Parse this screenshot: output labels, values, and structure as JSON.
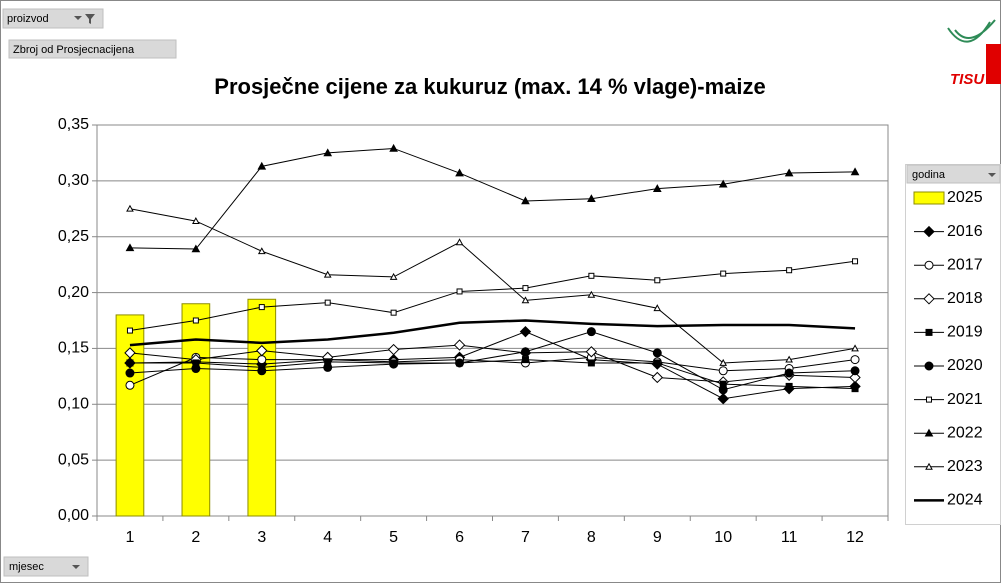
{
  "ui": {
    "filter_field": "proizvod",
    "data_field": "Zbroj od Prosjecnacijena",
    "legend_field": "godina",
    "axis_field": "mjesec",
    "logo": "TISU"
  },
  "chart_data": {
    "type": "line",
    "title": "Prosječne cijene za kukuruz (max. 14 % vlage)-maize",
    "categories": [
      "1",
      "2",
      "3",
      "4",
      "5",
      "6",
      "7",
      "8",
      "9",
      "10",
      "11",
      "12"
    ],
    "ylim": [
      0,
      0.35
    ],
    "yticks": [
      {
        "value": 0,
        "label": "0,00"
      },
      {
        "value": 0.05,
        "label": "0,05"
      },
      {
        "value": 0.1,
        "label": "0,10"
      },
      {
        "value": 0.15,
        "label": "0,15"
      },
      {
        "value": 0.2,
        "label": "0,20"
      },
      {
        "value": 0.25,
        "label": "0,25"
      },
      {
        "value": 0.3,
        "label": "0,30"
      },
      {
        "value": 0.35,
        "label": "0,35"
      }
    ],
    "grid": true,
    "legend": "right",
    "series": [
      {
        "name": "2025",
        "type": "bar",
        "color": "#ffff00",
        "marker": "none",
        "values": [
          0.18,
          0.19,
          0.194,
          null,
          null,
          null,
          null,
          null,
          null,
          null,
          null,
          null
        ]
      },
      {
        "name": "2016",
        "type": "line",
        "color": "#000000",
        "marker": "diamond-filled",
        "values": [
          0.137,
          0.138,
          0.136,
          0.14,
          0.14,
          0.142,
          0.165,
          0.14,
          0.136,
          0.105,
          0.114,
          0.116
        ]
      },
      {
        "name": "2017",
        "type": "line",
        "color": "#000000",
        "marker": "circle-open",
        "values": [
          0.117,
          0.142,
          0.14,
          0.14,
          0.138,
          0.14,
          0.137,
          0.142,
          0.138,
          0.13,
          0.132,
          0.14
        ]
      },
      {
        "name": "2018",
        "type": "line",
        "color": "#000000",
        "marker": "diamond-open",
        "values": [
          0.146,
          0.14,
          0.148,
          0.142,
          0.149,
          0.153,
          0.146,
          0.147,
          0.124,
          0.12,
          0.126,
          0.124
        ]
      },
      {
        "name": "2019",
        "type": "line",
        "color": "#000000",
        "marker": "square-filled",
        "values": [
          0.137,
          0.137,
          0.133,
          0.138,
          0.137,
          0.137,
          0.14,
          0.137,
          0.137,
          0.118,
          0.116,
          0.114
        ]
      },
      {
        "name": "2020",
        "type": "line",
        "color": "#000000",
        "marker": "circle-filled",
        "values": [
          0.128,
          0.132,
          0.13,
          0.133,
          0.136,
          0.137,
          0.147,
          0.165,
          0.146,
          0.113,
          0.128,
          0.13
        ]
      },
      {
        "name": "2021",
        "type": "line",
        "color": "#000000",
        "marker": "square-open",
        "values": [
          0.166,
          0.175,
          0.187,
          0.191,
          0.182,
          0.201,
          0.204,
          0.215,
          0.211,
          0.217,
          0.22,
          0.228
        ]
      },
      {
        "name": "2022",
        "type": "line",
        "color": "#000000",
        "marker": "triangle-filled",
        "values": [
          0.24,
          0.239,
          0.313,
          0.325,
          0.329,
          0.307,
          0.282,
          0.284,
          0.293,
          0.297,
          0.307,
          0.308
        ]
      },
      {
        "name": "2023",
        "type": "line",
        "color": "#000000",
        "marker": "triangle-open",
        "values": [
          0.275,
          0.264,
          0.237,
          0.216,
          0.214,
          0.245,
          0.193,
          0.198,
          0.186,
          0.137,
          0.14,
          0.15
        ]
      },
      {
        "name": "2024",
        "type": "line",
        "color": "#000000",
        "marker": "thick",
        "values": [
          0.153,
          0.158,
          0.155,
          0.158,
          0.164,
          0.173,
          0.175,
          0.172,
          0.17,
          0.171,
          0.171,
          0.168
        ]
      }
    ]
  }
}
